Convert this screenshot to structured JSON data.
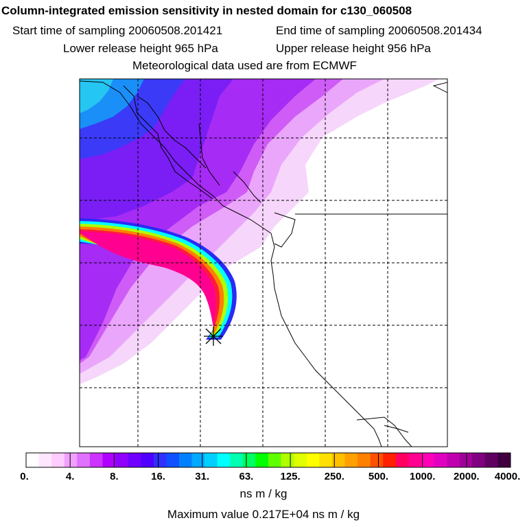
{
  "header": {
    "title": "Column-integrated emission sensitivity in nested domain for c130_060508",
    "start_label": "Start time of sampling 20060508.201421",
    "end_label": "End time of sampling 20060508.201434",
    "lower_label": "Lower release height  965 hPa",
    "upper_label": "Upper release height  956 hPa",
    "met_label": "Meteorological data used are from ECMWF"
  },
  "colorbar": {
    "labels": [
      "0.",
      "4.",
      "8.",
      "16.",
      "31.",
      "63.",
      "125.",
      "250.",
      "500.",
      "1000.",
      "2000.",
      "4000."
    ],
    "colors": [
      "#ffffff",
      "#ffe6ff",
      "#ffccff",
      "#f0a0ff",
      "#e070ff",
      "#cc33ff",
      "#b000ff",
      "#9000ff",
      "#7000ff",
      "#5000ff",
      "#3030ff",
      "#1050ff",
      "#0080ff",
      "#00a8ff",
      "#00d0ff",
      "#00ffff",
      "#00ffb0",
      "#00ff60",
      "#00ff00",
      "#60ff00",
      "#b0ff00",
      "#e0ff00",
      "#ffff00",
      "#ffe000",
      "#ffc000",
      "#ffa000",
      "#ff8000",
      "#ff5000",
      "#ff2000",
      "#ff0060",
      "#ff0090",
      "#ff00b8",
      "#e000c0",
      "#c000b0",
      "#a00098",
      "#800080",
      "#600060",
      "#400040"
    ],
    "units": "ns m / kg",
    "max_value": "Maximum value  0.217E+04 ns m / kg"
  },
  "map": {
    "release_marker": "release-point-star"
  }
}
